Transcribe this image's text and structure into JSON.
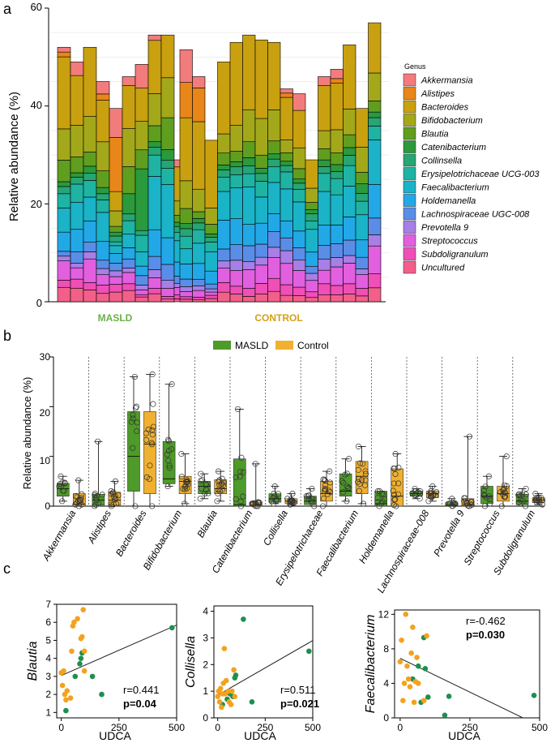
{
  "colors": {
    "masld_green": "#4e9a2a",
    "control_orange": "#f0a830",
    "scatter_masld": "#1e8f4e",
    "scatter_control": "#f3a21f"
  },
  "panel_a": {
    "letter": "a",
    "ylabel": "Relative abundance (%)",
    "yticks": [
      "0",
      "20",
      "40",
      "60"
    ],
    "group_labels": [
      "MASLD",
      "CONTROL"
    ],
    "legend_title": "Genus"
  },
  "panel_b": {
    "letter": "b",
    "ylabel": "Relative abundance (%)",
    "yticks": [
      "0",
      "10",
      "20",
      "30"
    ],
    "legend": [
      "MASLD",
      "Control"
    ]
  },
  "panel_c": {
    "letter": "c",
    "xlabel": "UDCA"
  },
  "chart_data": [
    {
      "type": "bar",
      "stacked": true,
      "ylabel": "Relative abundance (%)",
      "ylim": [
        0,
        60
      ],
      "legend_title": "Genus",
      "legend_position": "right",
      "groups": [
        {
          "name": "MASLD",
          "sample_count": 10
        },
        {
          "name": "CONTROL",
          "sample_count": 16
        }
      ],
      "genera": [
        {
          "name": "Akkermansia",
          "color": "#f27c7c"
        },
        {
          "name": "Alistipes",
          "color": "#e8861a"
        },
        {
          "name": "Bacteroides",
          "color": "#c9a00f"
        },
        {
          "name": "Bifidobacterium",
          "color": "#a3a81b"
        },
        {
          "name": "Blautia",
          "color": "#5f9e1f"
        },
        {
          "name": "Catenibacterium",
          "color": "#2a9a3c"
        },
        {
          "name": "Collinsella",
          "color": "#27a574"
        },
        {
          "name": "Erysipelotrichaceae UCG-003",
          "color": "#1fb3a3"
        },
        {
          "name": "Faecalibacterium",
          "color": "#1bb3c7"
        },
        {
          "name": "Holdemanella",
          "color": "#22a8e6"
        },
        {
          "name": "Lachnospiraceae UGC-008",
          "color": "#5a8de8"
        },
        {
          "name": "Prevotella 9",
          "color": "#a77fe6"
        },
        {
          "name": "Streptococcus",
          "color": "#e25fe0"
        },
        {
          "name": "Subdoligranulum",
          "color": "#f04fb7"
        },
        {
          "name": "Uncultured",
          "color": "#f2608a"
        }
      ],
      "sample_totals": [
        52,
        49,
        52,
        45,
        39.5,
        46,
        48.5,
        54.5,
        54.5,
        29,
        51.5,
        46,
        33,
        49,
        53,
        54.5,
        53.5,
        53,
        43.5,
        42.5,
        29,
        46,
        47.5,
        52.5,
        39.5,
        57
      ]
    },
    {
      "type": "box",
      "ylabel": "Relative abundance (%)",
      "ylim": [
        0,
        30
      ],
      "legend": [
        "MASLD",
        "Control"
      ],
      "legend_position": "top",
      "genera": [
        {
          "name": "Akkermansia",
          "masld": {
            "q1": 2,
            "median": 3.5,
            "q3": 4.6,
            "min": 1,
            "max": 6
          },
          "control": {
            "q1": 0,
            "median": 0.4,
            "q3": 2.5,
            "min": 0,
            "max": 5.2
          }
        },
        {
          "name": "Alistipes",
          "masld": {
            "q1": 0.2,
            "median": 1.2,
            "q3": 2.4,
            "min": 0,
            "max": 13
          },
          "control": {
            "q1": 0.2,
            "median": 1.2,
            "q3": 2.8,
            "min": 0,
            "max": 5
          }
        },
        {
          "name": "Bacteroides",
          "masld": {
            "q1": 3,
            "median": 10,
            "q3": 19,
            "min": 0,
            "max": 26
          },
          "control": {
            "q1": 2.5,
            "median": 12.5,
            "q3": 19,
            "min": 0,
            "max": 26.5
          }
        },
        {
          "name": "Bifidobacterium",
          "masld": {
            "q1": 4.5,
            "median": 5.5,
            "q3": 13,
            "min": 4,
            "max": 24.5
          },
          "control": {
            "q1": 2.5,
            "median": 5,
            "q3": 6,
            "min": 0.5,
            "max": 10.5
          }
        },
        {
          "name": "Blautia",
          "masld": {
            "q1": 2.5,
            "median": 4,
            "q3": 5,
            "min": 1.5,
            "max": 6.5
          },
          "control": {
            "q1": 2.5,
            "median": 3.5,
            "q3": 5.3,
            "min": 1,
            "max": 7
          }
        },
        {
          "name": "Catenibacterium",
          "masld": {
            "q1": 0,
            "median": 0.3,
            "q3": 9.5,
            "min": 0,
            "max": 19.5
          },
          "control": {
            "q1": 0,
            "median": 0.2,
            "q3": 0.8,
            "min": 0,
            "max": 8.5
          }
        },
        {
          "name": "Collisella",
          "masld": {
            "q1": 0.8,
            "median": 1.5,
            "q3": 2.5,
            "min": 0.5,
            "max": 4
          },
          "control": {
            "q1": 0.5,
            "median": 1,
            "q3": 1.5,
            "min": 0.3,
            "max": 2.5
          }
        },
        {
          "name": "Erysipelotrichaceae",
          "masld": {
            "q1": 0.3,
            "median": 1,
            "q3": 2,
            "min": 0,
            "max": 3.5
          },
          "control": {
            "q1": 1,
            "median": 2.5,
            "q3": 5,
            "min": 0,
            "max": 7
          }
        },
        {
          "name": "Faecalibacterium",
          "masld": {
            "q1": 2,
            "median": 3,
            "q3": 6.5,
            "min": 1,
            "max": 9.5
          },
          "control": {
            "q1": 2.5,
            "median": 6,
            "q3": 9,
            "min": 0.5,
            "max": 12
          }
        },
        {
          "name": "Holdemanella",
          "masld": {
            "q1": 0,
            "median": 0.5,
            "q3": 3,
            "min": 0,
            "max": 3
          },
          "control": {
            "q1": 0,
            "median": 2,
            "q3": 7.5,
            "min": 0,
            "max": 10.5
          }
        },
        {
          "name": "Lachnospiraceae-008",
          "masld": {
            "q1": 2,
            "median": 2.5,
            "q3": 3,
            "min": 1.5,
            "max": 3.5
          },
          "control": {
            "q1": 1.7,
            "median": 2.5,
            "q3": 3,
            "min": 1,
            "max": 4
          }
        },
        {
          "name": "Prevotella 9",
          "masld": {
            "q1": 0,
            "median": 0.2,
            "q3": 0.7,
            "min": 0,
            "max": 1.5
          },
          "control": {
            "q1": 0,
            "median": 0.2,
            "q3": 1.5,
            "min": 0,
            "max": 14
          }
        },
        {
          "name": "Streptococcus",
          "masld": {
            "q1": 0.5,
            "median": 2,
            "q3": 4,
            "min": 0,
            "max": 6
          },
          "control": {
            "q1": 1,
            "median": 2.5,
            "q3": 4,
            "min": 0,
            "max": 10
          }
        },
        {
          "name": "Subdoligranulum",
          "masld": {
            "q1": 0.3,
            "median": 1,
            "q3": 2.4,
            "min": 0,
            "max": 3.5
          },
          "control": {
            "q1": 0.7,
            "median": 1.2,
            "q3": 1.7,
            "min": 0.3,
            "max": 2.5
          }
        }
      ]
    },
    {
      "type": "scatter",
      "xlabel": "UDCA",
      "ylabel": "Blautia",
      "xlim": [
        -20,
        500
      ],
      "ylim": [
        0.7,
        7
      ],
      "xticks": [
        0,
        250,
        500
      ],
      "yticks": [
        1,
        2,
        3,
        4,
        5,
        6,
        7
      ],
      "annotation": {
        "r": "r=0.441",
        "p": "p=0.04"
      },
      "fit_line": [
        [
          0,
          3.05
        ],
        [
          500,
          5.85
        ]
      ],
      "series": [
        {
          "name": "MASLD",
          "points": [
            [
              20,
              1.1
            ],
            [
              60,
              3.0
            ],
            [
              80,
              3.7
            ],
            [
              85,
              4.0
            ],
            [
              90,
              4.3
            ],
            [
              135,
              3.0
            ],
            [
              175,
              2.0
            ],
            [
              480,
              5.7
            ]
          ]
        },
        {
          "name": "Control",
          "points": [
            [
              5,
              2.5
            ],
            [
              0,
              3.2
            ],
            [
              10,
              3.3
            ],
            [
              20,
              1.7
            ],
            [
              25,
              2.2
            ],
            [
              40,
              1.8
            ],
            [
              45,
              4.4
            ],
            [
              55,
              6.0
            ],
            [
              50,
              5.8
            ],
            [
              70,
              6.2
            ],
            [
              85,
              5.1
            ],
            [
              90,
              5.2
            ],
            [
              95,
              6.7
            ],
            [
              100,
              3.3
            ],
            [
              100,
              4.4
            ],
            [
              15,
              2.0
            ]
          ]
        }
      ]
    },
    {
      "type": "scatter",
      "xlabel": "UDCA",
      "ylabel": "Collisella",
      "xlim": [
        -20,
        500
      ],
      "ylim": [
        0,
        4.2
      ],
      "xticks": [
        0,
        250,
        500
      ],
      "yticks": [
        0,
        1,
        2,
        3,
        4
      ],
      "annotation": {
        "r": "r=0.511",
        "p": "p=0.021"
      },
      "fit_line": [
        [
          0,
          0.85
        ],
        [
          500,
          2.9
        ]
      ],
      "series": [
        {
          "name": "MASLD",
          "points": [
            [
              25,
              0.5
            ],
            [
              50,
              0.7
            ],
            [
              65,
              0.9
            ],
            [
              80,
              0.8
            ],
            [
              90,
              1.5
            ],
            [
              95,
              1.6
            ],
            [
              135,
              3.7
            ],
            [
              180,
              0.6
            ],
            [
              480,
              2.5
            ]
          ]
        },
        {
          "name": "Control",
          "points": [
            [
              0,
              0.8
            ],
            [
              5,
              1.0
            ],
            [
              10,
              0.6
            ],
            [
              15,
              1.1
            ],
            [
              20,
              0.4
            ],
            [
              25,
              0.9
            ],
            [
              30,
              1.3
            ],
            [
              35,
              2.6
            ],
            [
              40,
              0.9
            ],
            [
              45,
              1.4
            ],
            [
              55,
              1.0
            ],
            [
              60,
              0.6
            ],
            [
              70,
              0.5
            ],
            [
              75,
              1.0
            ],
            [
              85,
              1.8
            ],
            [
              90,
              0.8
            ]
          ]
        }
      ]
    },
    {
      "type": "scatter",
      "xlabel": "UDCA",
      "ylabel": "Faecalibacterium",
      "xlim": [
        -20,
        500
      ],
      "ylim": [
        0,
        12.5
      ],
      "xticks": [
        0,
        250,
        500
      ],
      "yticks": [
        0,
        4,
        8,
        12
      ],
      "annotation": {
        "r": "r=-0.462",
        "p": "p=0.030"
      },
      "fit_line": [
        [
          0,
          6.9
        ],
        [
          440,
          0
        ]
      ],
      "series": [
        {
          "name": "MASLD",
          "points": [
            [
              45,
              4.5
            ],
            [
              65,
              6.0
            ],
            [
              75,
              1.8
            ],
            [
              85,
              9.3
            ],
            [
              90,
              5.7
            ],
            [
              100,
              2.4
            ],
            [
              160,
              0.3
            ],
            [
              175,
              2.5
            ],
            [
              480,
              2.6
            ]
          ]
        },
        {
          "name": "Control",
          "points": [
            [
              0,
              6.5
            ],
            [
              5,
              9.0
            ],
            [
              10,
              2.0
            ],
            [
              15,
              4.0
            ],
            [
              20,
              12.0
            ],
            [
              25,
              6.0
            ],
            [
              30,
              4.5
            ],
            [
              35,
              3.6
            ],
            [
              40,
              7.5
            ],
            [
              45,
              10.5
            ],
            [
              50,
              1.8
            ],
            [
              55,
              4.2
            ],
            [
              60,
              7.0
            ],
            [
              65,
              4.0
            ],
            [
              85,
              2.0
            ],
            [
              95,
              9.5
            ]
          ]
        }
      ]
    }
  ]
}
